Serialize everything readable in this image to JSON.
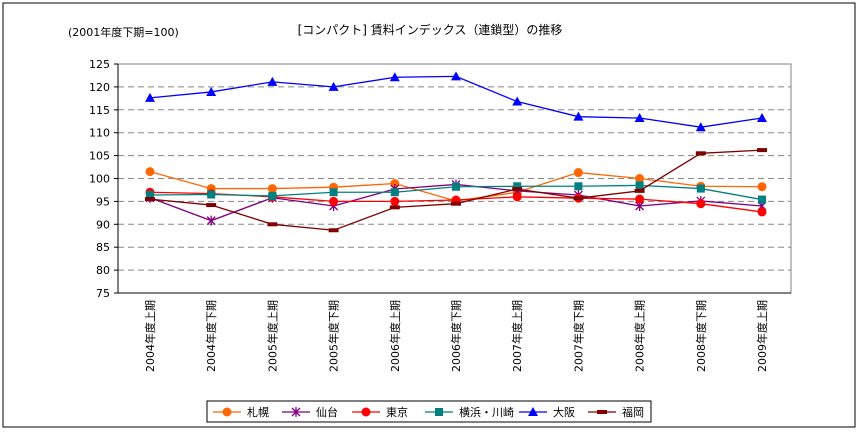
{
  "chart_data": {
    "type": "line",
    "title": "[コンパクト] 賃料インデックス（連鎖型）の推移",
    "subtitle": "(2001年度下期=100)",
    "categories": [
      "2004年度上期",
      "2004年度下期",
      "2005年度上期",
      "2005年度下期",
      "2006年度上期",
      "2006年度下期",
      "2007年度上期",
      "2007年度下期",
      "2008年度上期",
      "2008年度下期",
      "2009年度上期"
    ],
    "ylim": [
      75,
      125
    ],
    "yticks": [
      75,
      80,
      85,
      90,
      95,
      100,
      105,
      110,
      115,
      120,
      125
    ],
    "grid": "horizontal dashed",
    "legend": "bottom",
    "series": [
      {
        "name": "札幌",
        "color": "#FF6600",
        "marker": "circle",
        "values": [
          101.5,
          97.8,
          97.8,
          98.1,
          98.9,
          95.1,
          97.0,
          101.3,
          100.0,
          98.3,
          98.2
        ]
      },
      {
        "name": "仙台",
        "color": "#800080",
        "marker": "asterisk",
        "values": [
          95.8,
          90.8,
          95.8,
          94.0,
          97.7,
          98.7,
          97.3,
          96.4,
          94.0,
          95.1,
          94.0
        ]
      },
      {
        "name": "東京",
        "color": "#FF0000",
        "marker": "circle",
        "values": [
          97.0,
          96.7,
          96.0,
          95.0,
          95.0,
          95.3,
          96.0,
          95.7,
          95.5,
          94.5,
          92.7
        ]
      },
      {
        "name": "横浜・川崎",
        "color": "#008080",
        "marker": "square",
        "values": [
          96.4,
          96.5,
          96.2,
          97.0,
          97.0,
          98.2,
          98.3,
          98.3,
          98.5,
          97.8,
          95.4
        ]
      },
      {
        "name": "大阪",
        "color": "#0000FF",
        "marker": "triangle",
        "values": [
          117.6,
          118.9,
          121.1,
          120.0,
          122.1,
          122.3,
          116.8,
          113.5,
          113.2,
          111.2,
          113.2
        ]
      },
      {
        "name": "福岡",
        "color": "#800000",
        "marker": "dash",
        "values": [
          95.5,
          94.2,
          90.0,
          88.7,
          93.7,
          94.5,
          97.7,
          95.7,
          97.3,
          105.5,
          106.2
        ]
      }
    ]
  }
}
